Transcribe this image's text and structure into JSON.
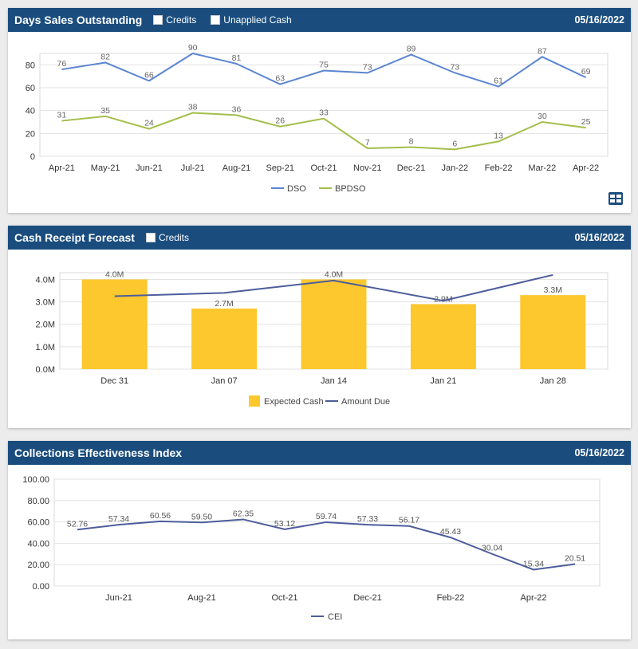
{
  "colors": {
    "header_bg": "#1a4d7e",
    "dso": "#5b85d1",
    "bpdso": "#a4be4a",
    "expected_cash": "#fcc82e",
    "amount_due": "#4c5d9c",
    "cei": "#4c5d9c"
  },
  "dso_panel": {
    "title": "Days Sales Outstanding",
    "options": [
      "Credits",
      "Unapplied Cash"
    ],
    "date": "05/16/2022",
    "table_button_icon": "table-grid-icon"
  },
  "cash_panel": {
    "title": "Cash Receipt Forecast",
    "options": [
      "Credits"
    ],
    "date": "05/16/2022"
  },
  "cei_panel": {
    "title": "Collections Effectiveness Index",
    "date": "05/16/2022"
  },
  "chart_data": [
    {
      "type": "line",
      "categories": [
        "Apr-21",
        "May-21",
        "Jun-21",
        "Jul-21",
        "Aug-21",
        "Sep-21",
        "Oct-21",
        "Nov-21",
        "Dec-21",
        "Jan-22",
        "Feb-22",
        "Mar-22",
        "Apr-22"
      ],
      "series": [
        {
          "name": "DSO",
          "values": [
            76,
            82,
            66,
            90,
            81,
            63,
            75,
            73,
            89,
            73,
            61,
            87,
            69
          ]
        },
        {
          "name": "BPDSO",
          "values": [
            31,
            35,
            24,
            38,
            36,
            26,
            33,
            7,
            8,
            6,
            13,
            30,
            25
          ]
        }
      ],
      "yticks": [
        "0",
        "20",
        "40",
        "60",
        "80"
      ],
      "ylim": [
        0,
        90
      ],
      "grid": true,
      "legend": "bottom"
    },
    {
      "type": "bar",
      "categories": [
        "Dec 31",
        "Jan 07",
        "Jan 14",
        "Jan 21",
        "Jan 28"
      ],
      "series": [
        {
          "name": "Expected Cash",
          "kind": "bar",
          "values": [
            4.0,
            2.7,
            4.0,
            2.9,
            3.3
          ],
          "labels": [
            "4.0M",
            "2.7M",
            "4.0M",
            "2.9M",
            "3.3M"
          ]
        },
        {
          "name": "Amount Due",
          "kind": "line",
          "values": [
            3.25,
            3.4,
            3.95,
            3.05,
            4.2
          ]
        }
      ],
      "yticks": [
        "0.0M",
        "1.0M",
        "2.0M",
        "3.0M",
        "4.0M"
      ],
      "ylim": [
        0,
        4.3
      ],
      "unit": "M",
      "grid": true,
      "legend": "bottom"
    },
    {
      "type": "line",
      "x": [
        "May-21",
        "Jun-21",
        "Jul-21",
        "Aug-21",
        "Sep-21",
        "Oct-21",
        "Nov-21",
        "Dec-21",
        "Jan-22",
        "Feb-22",
        "Mar-22",
        "Apr-22",
        "May-22"
      ],
      "xticks": [
        "Jun-21",
        "Aug-21",
        "Oct-21",
        "Dec-21",
        "Feb-22",
        "Apr-22"
      ],
      "series": [
        {
          "name": "CEI",
          "values": [
            52.76,
            57.34,
            60.56,
            59.5,
            62.35,
            53.12,
            59.74,
            57.33,
            56.17,
            45.43,
            30.04,
            15.34,
            20.51
          ],
          "labels": [
            "52.76",
            "57.34",
            "60.56",
            "59.50",
            "62.35",
            "53.12",
            "59.74",
            "57.33",
            "56.17",
            "45.43",
            "30.04",
            "15.34",
            "20.51"
          ]
        }
      ],
      "yticks": [
        "0.00",
        "20.00",
        "40.00",
        "60.00",
        "80.00",
        "100.00"
      ],
      "ylim": [
        0,
        100
      ],
      "grid": true,
      "legend": "bottom"
    }
  ]
}
